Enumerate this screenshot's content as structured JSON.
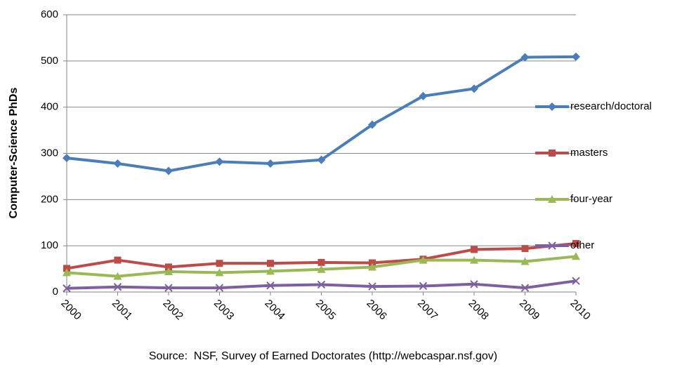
{
  "chart_data": {
    "type": "line",
    "y_label": "Computer-Science PhDs",
    "annotation": "Source:  NSF, Survey of Earned Doctorates (http://webcaspar.nsf.gov)",
    "categories": [
      "2000",
      "2001",
      "2002",
      "2003",
      "2004",
      "2005",
      "2006",
      "2007",
      "2008",
      "2009",
      "2010"
    ],
    "series": [
      {
        "name": "research/doctoral",
        "color": "#4a7ebb",
        "marker": "diamond",
        "values": [
          290,
          278,
          262,
          282,
          278,
          286,
          362,
          424,
          440,
          508,
          509
        ]
      },
      {
        "name": "masters",
        "color": "#be4b48",
        "marker": "square",
        "values": [
          51,
          69,
          54,
          62,
          62,
          64,
          63,
          71,
          92,
          94,
          105
        ]
      },
      {
        "name": "four-year",
        "color": "#98b954",
        "marker": "triangle",
        "values": [
          42,
          34,
          44,
          42,
          45,
          49,
          54,
          69,
          69,
          66,
          77
        ]
      },
      {
        "name": "other",
        "color": "#7d60a0",
        "marker": "x",
        "values": [
          8,
          11,
          9,
          9,
          14,
          16,
          12,
          13,
          17,
          9,
          24
        ]
      }
    ],
    "ylim": [
      0,
      600
    ],
    "yticks": [
      0,
      100,
      200,
      300,
      400,
      500,
      600
    ],
    "grid": true,
    "legend": "right"
  }
}
